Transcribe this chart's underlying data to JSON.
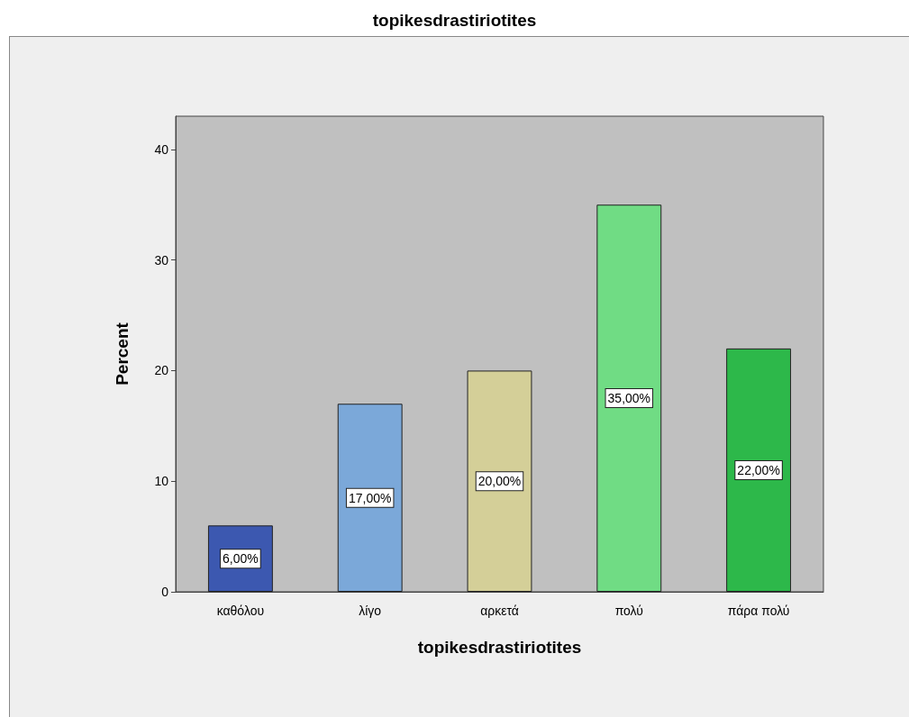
{
  "chart_data": {
    "type": "bar",
    "title": "topikesdrastiriotites",
    "xlabel": "topikesdrastiriotites",
    "ylabel": "Percent",
    "categories": [
      "καθόλου",
      "λίγο",
      "αρκετά",
      "πολύ",
      "πάρα πολύ"
    ],
    "values": [
      6,
      17,
      20,
      35,
      22
    ],
    "colors": [
      "#3c58b0",
      "#7ba8d9",
      "#d4cf98",
      "#70dc84",
      "#2db84a"
    ],
    "value_labels": [
      "6,00%",
      "17,00%",
      "20,00%",
      "35,00%",
      "22,00%"
    ],
    "ylim": [
      0,
      43
    ],
    "yticks": [
      0,
      10,
      20,
      30,
      40
    ],
    "grid": false
  }
}
